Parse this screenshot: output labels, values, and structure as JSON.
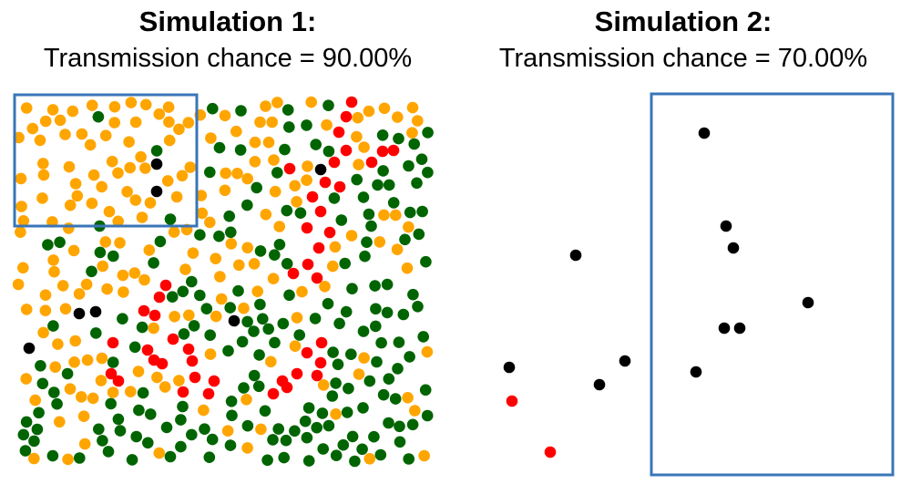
{
  "colors": {
    "susceptible": "#ffa500",
    "recovered": "#006400",
    "infected": "#ff0000",
    "dead": "#000000",
    "box": "#3a75b8"
  },
  "simulations": [
    {
      "title": "Simulation 1:",
      "subtitle": "Transmission chance = 90.00%"
    },
    {
      "title": "Simulation 2:",
      "subtitle": "Transmission chance = 70.00%"
    }
  ]
}
